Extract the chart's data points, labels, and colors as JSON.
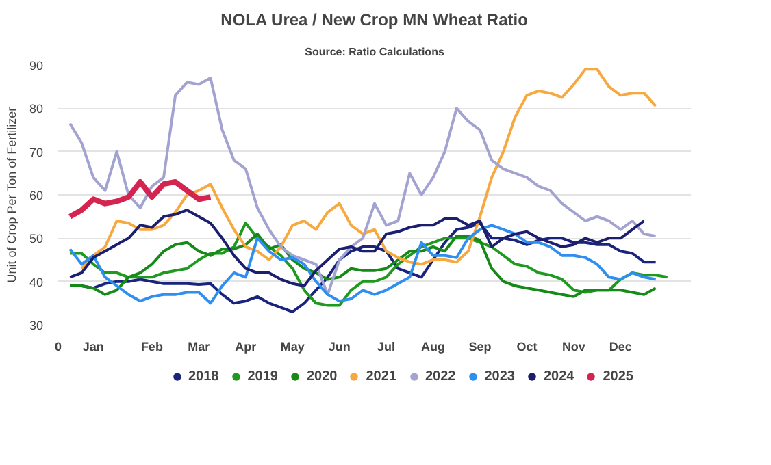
{
  "chart_data": {
    "type": "line",
    "title": "NOLA Urea / New Crop MN Wheat Ratio",
    "subtitle": "Source: Ratio Calculations",
    "ylabel": "Unit of Crop Per Ton of Fertilizer",
    "annotations": [
      "0"
    ],
    "categories": [
      null,
      null,
      "Jan",
      null,
      null,
      null,
      null,
      "Feb",
      null,
      null,
      null,
      "Mar",
      null,
      null,
      null,
      "Apr",
      null,
      null,
      null,
      "May",
      null,
      null,
      null,
      "Jun",
      null,
      null,
      null,
      "Jul",
      null,
      null,
      null,
      "Aug",
      null,
      null,
      null,
      "Sep",
      null,
      null,
      null,
      "Oct",
      null,
      null,
      null,
      "Nov",
      null,
      null,
      null,
      "Dec",
      null,
      null,
      null,
      null
    ],
    "ylim": [
      30,
      90
    ],
    "yticks": [
      30,
      40,
      50,
      60,
      70,
      80,
      90
    ],
    "grid": "y",
    "legend": "bottom",
    "marker": "none",
    "line_style": "solid",
    "series": [
      {
        "name": "2018",
        "color": "#1a237e",
        "values": [
          39,
          39,
          38.5,
          39.5,
          40,
          40,
          40.5,
          40,
          39.5,
          39.5,
          39.5,
          39.3,
          39.5,
          37,
          35,
          35.5,
          36.5,
          35,
          34,
          33,
          35,
          38,
          41,
          45,
          47,
          48,
          48,
          47,
          43,
          42,
          41,
          45,
          49,
          52,
          52.5,
          53.5,
          50,
          50,
          49.5,
          48.5,
          49.5,
          50,
          50,
          49,
          49,
          48.5,
          48.5,
          47,
          46.5,
          44.5,
          44.5,
          null
        ]
      },
      {
        "name": "2019",
        "color": "#1f9a1f",
        "values": [
          46.5,
          46.5,
          44,
          42,
          42,
          41,
          41,
          41,
          42,
          42.5,
          43,
          45,
          46.5,
          46.5,
          48,
          53.5,
          50,
          48,
          46,
          43,
          38,
          35,
          34.5,
          34.5,
          38,
          40,
          40,
          41,
          44,
          46,
          48,
          49,
          50,
          50,
          50,
          49,
          48,
          46,
          44,
          43.5,
          42,
          41.5,
          40.5,
          38,
          37.5,
          38,
          38,
          40.5,
          42,
          41.5,
          41.5,
          41
        ]
      },
      {
        "name": "2020",
        "color": "#168a16",
        "values": [
          39,
          39,
          38.5,
          37,
          38,
          41,
          42,
          44,
          47,
          48.5,
          49,
          47,
          46,
          47.5,
          47.5,
          48.5,
          51,
          47.5,
          48.5,
          45,
          43,
          42,
          40.5,
          41,
          43,
          42.5,
          42.5,
          43,
          45,
          47,
          47,
          48,
          47,
          50.5,
          50.5,
          49.5,
          43,
          40,
          39,
          38.5,
          38,
          37.5,
          37,
          36.5,
          38,
          38,
          38,
          38,
          37.5,
          37,
          38.5,
          null
        ]
      },
      {
        "name": "2021",
        "color": "#f7a83e",
        "values": [
          null,
          43,
          46,
          48,
          54,
          53.5,
          52,
          52,
          53,
          56,
          60,
          61,
          62.5,
          57,
          52,
          48,
          47,
          45,
          48,
          53,
          54,
          52,
          56,
          58,
          53,
          51,
          52,
          47,
          45.5,
          44.5,
          44,
          45,
          45,
          44.5,
          47,
          55,
          64,
          70,
          78,
          83,
          84,
          83.5,
          82.5,
          85.5,
          89,
          89,
          85,
          83,
          83.5,
          83.5,
          80.5,
          null
        ]
      },
      {
        "name": "2022",
        "color": "#a3a3d1",
        "values": [
          76.5,
          72,
          64,
          61,
          70,
          60,
          57,
          62,
          64,
          83,
          86,
          85.5,
          87,
          75,
          68,
          66,
          57,
          52,
          48,
          46,
          45,
          44,
          37,
          45,
          48,
          50,
          58,
          53,
          54,
          65,
          60,
          64,
          70,
          80,
          77,
          75,
          68,
          66,
          65,
          64,
          62,
          61,
          58,
          56,
          54,
          55,
          54,
          52,
          54,
          51,
          50.5,
          null
        ]
      },
      {
        "name": "2023",
        "color": "#2e8ff0",
        "values": [
          47.5,
          44,
          46,
          41,
          39,
          37,
          35.5,
          36.5,
          37,
          37,
          37.5,
          37.5,
          35,
          39,
          42,
          41,
          50,
          47,
          45,
          45.5,
          44,
          40,
          37,
          35.5,
          36,
          38,
          37,
          38,
          39.5,
          41,
          49,
          46,
          46,
          45.5,
          50,
          52,
          53,
          52,
          51,
          49,
          49,
          48,
          46,
          46,
          45.5,
          44,
          41,
          40.5,
          42,
          41,
          40.5,
          null
        ]
      },
      {
        "name": "2024",
        "color": "#1b1f6e",
        "values": [
          41,
          42,
          45.5,
          47,
          48.5,
          50,
          53,
          52.5,
          55,
          55.5,
          56.5,
          55,
          53.5,
          50,
          46,
          43,
          42,
          42,
          40.5,
          39.5,
          39,
          42.5,
          45,
          47.5,
          48,
          47,
          47,
          51,
          51.5,
          52.5,
          53,
          53,
          54.5,
          54.5,
          53,
          54,
          48,
          50,
          51,
          51.5,
          50,
          49,
          48,
          48.5,
          50,
          49,
          50,
          50,
          52,
          54,
          null,
          null
        ]
      },
      {
        "name": "2025",
        "color": "#d42450",
        "values": [
          55,
          56.5,
          59,
          58,
          58.5,
          59.5,
          63,
          59.5,
          62.5,
          63,
          61,
          59,
          59.5,
          null,
          null,
          null,
          null,
          null,
          null,
          null,
          null,
          null,
          null,
          null,
          null,
          null,
          null,
          null,
          null,
          null,
          null,
          null,
          null,
          null,
          null,
          null,
          null,
          null,
          null,
          null,
          null,
          null,
          null,
          null,
          null,
          null,
          null,
          null,
          null,
          null,
          null,
          null
        ]
      }
    ]
  }
}
